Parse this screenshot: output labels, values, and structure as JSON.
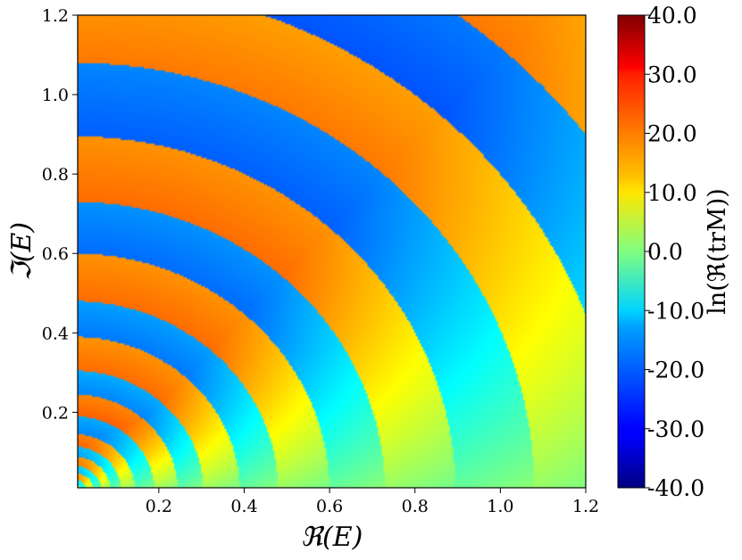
{
  "chart_data": {
    "type": "heatmap",
    "title": "",
    "xlabel": "ℜ(E)",
    "ylabel": "ℑ(E)",
    "xlim": [
      0.01,
      1.2
    ],
    "ylim": [
      0.01,
      1.2
    ],
    "xticks": [
      "0.2",
      "0.4",
      "0.6",
      "0.8",
      "1.0",
      "1.2"
    ],
    "yticks": [
      "0.2",
      "0.4",
      "0.6",
      "0.8",
      "1.0",
      "1.2"
    ],
    "colorbar": {
      "label": "ln(ℜ(trM))",
      "range": [
        -40,
        40
      ],
      "colormap": "jet",
      "ticks": [
        "-40.0",
        "-30.0",
        "-20.0",
        "-10.0",
        "0.0",
        "10.0",
        "20.0",
        "30.0",
        "40.0"
      ]
    },
    "pattern": {
      "description_value_formula": "alternating concentric bands centered at origin; bands widen with radius",
      "band_boundary_radii": [
        0.018,
        0.032,
        0.048,
        0.066,
        0.088,
        0.113,
        0.145,
        0.19,
        0.245,
        0.305,
        0.39,
        0.48,
        0.6,
        0.73,
        0.895,
        1.08,
        1.28,
        1.5,
        1.72
      ],
      "high_band_values": [
        24,
        23,
        22,
        21,
        21,
        20,
        20,
        20,
        19,
        19,
        18,
        17,
        17
      ],
      "low_band_values": [
        -16,
        -17,
        -17,
        -18,
        -18,
        -19,
        -20,
        -21,
        -22,
        -23,
        -24,
        -25,
        -26
      ],
      "far_field_value": 0
    }
  }
}
